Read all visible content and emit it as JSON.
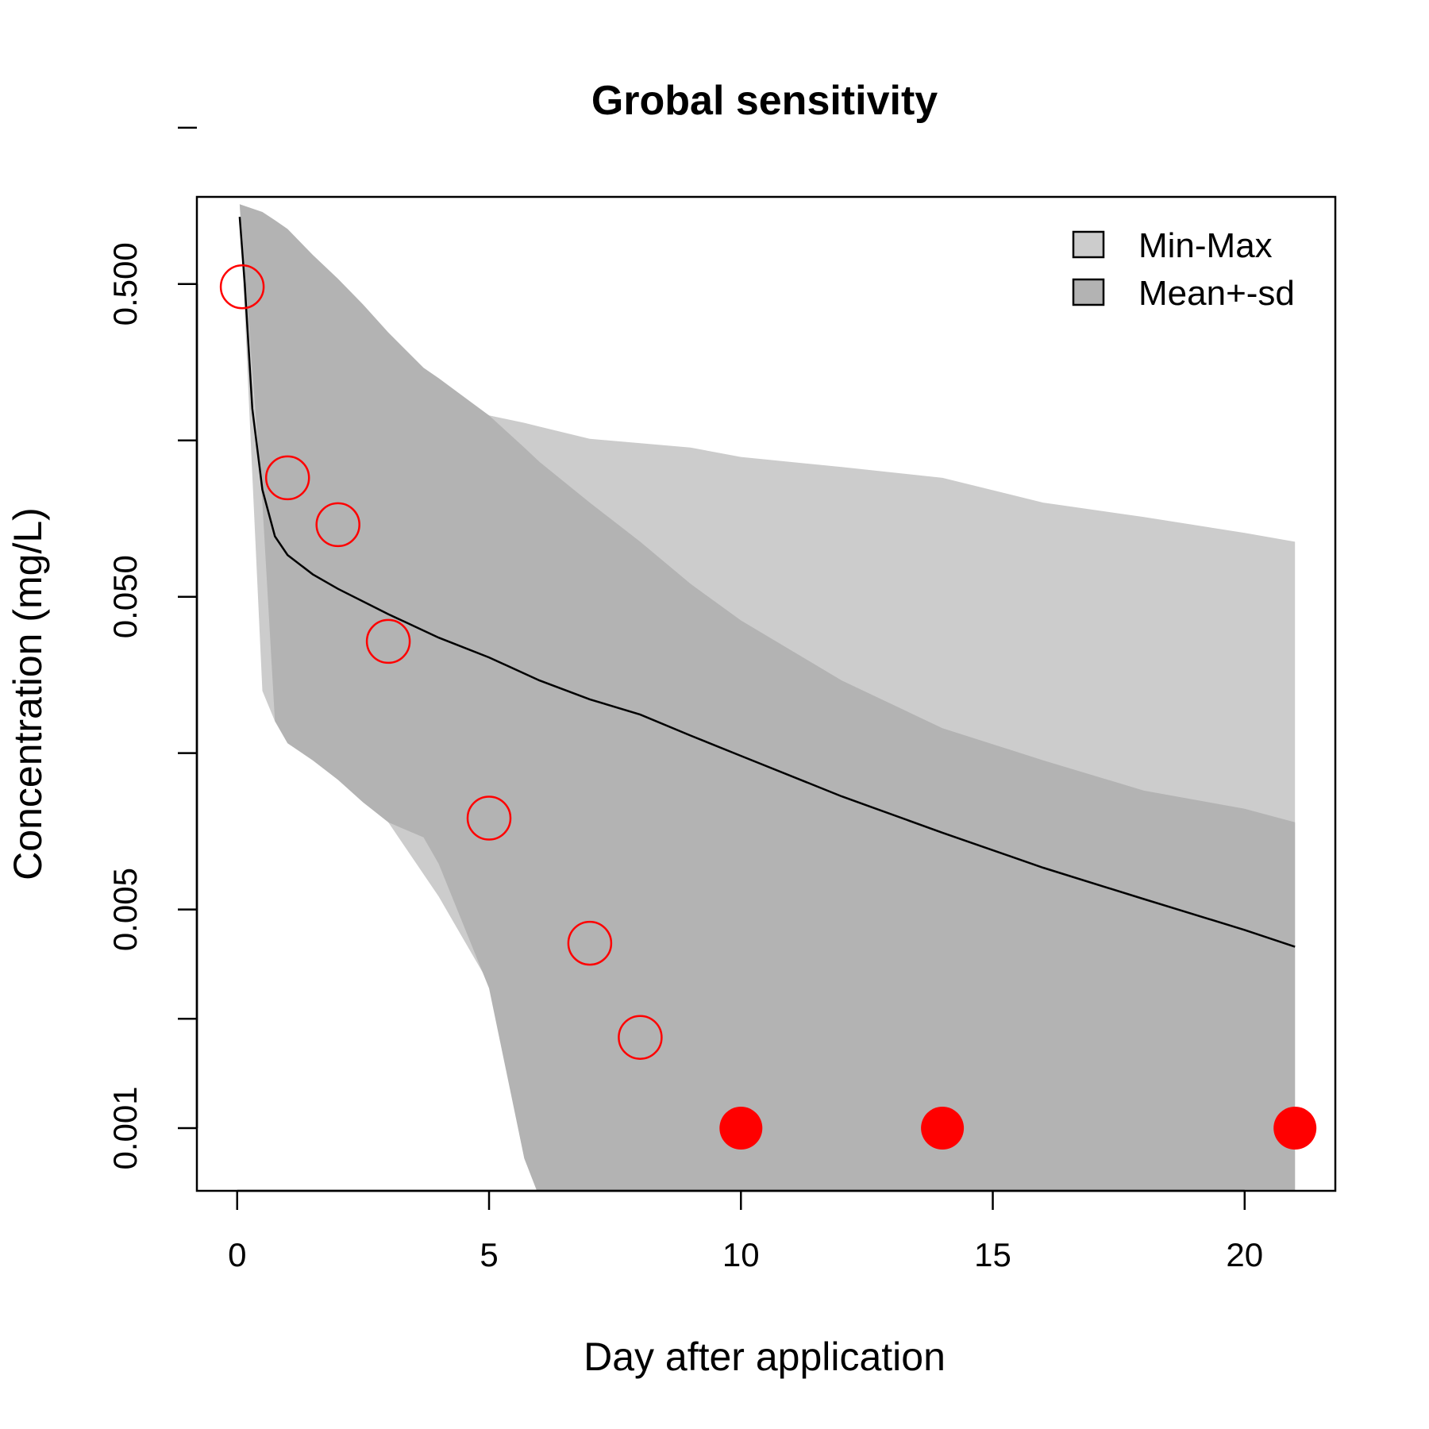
{
  "colors": {
    "minmax_band": "#cccccc",
    "sd_band": "#b3b3b3",
    "mean_line": "#000000",
    "observed": "#ff0000",
    "axes": "#000000"
  },
  "chart_data": {
    "type": "line",
    "title": "Grobal sensitivity",
    "xlabel": "Day after application",
    "ylabel": "Concentration (mg/L)",
    "xlim": [
      -0.8,
      21.8
    ],
    "ylim": [
      0.00063,
      0.95
    ],
    "y_scale": "log",
    "x_ticks": [
      0,
      5,
      10,
      15,
      20
    ],
    "x_tick_labels": [
      "0",
      "5",
      "10",
      "15",
      "20"
    ],
    "y_ticks": [
      0.001,
      0.005,
      0.05,
      0.5
    ],
    "y_tick_labels": [
      "0.001",
      "0.005",
      "0.050",
      "0.500"
    ],
    "grid": false,
    "legend": {
      "position": "top-right",
      "entries": [
        {
          "label": "Min-Max",
          "color": "#cccccc"
        },
        {
          "label": "Mean+-sd",
          "color": "#b3b3b3"
        }
      ]
    },
    "bands": [
      {
        "name": "Min-Max",
        "x": [
          0.05,
          0.5,
          0.75,
          1.0,
          1.5,
          2,
          2.5,
          3,
          4,
          5,
          5.7,
          6,
          7,
          8,
          9,
          10,
          12,
          14,
          16,
          18,
          20,
          21
        ],
        "lower": [
          0.9,
          0.025,
          0.02,
          0.019,
          0.016,
          0.013,
          0.012,
          0.0095,
          0.0055,
          0.0029,
          0.0008,
          0.0006,
          0.0006,
          0.0006,
          0.0006,
          0.0006,
          0.0006,
          0.0006,
          0.0006,
          0.0006,
          0.0006,
          0.0006
        ],
        "upper": [
          0.9,
          0.8,
          0.75,
          0.7,
          0.6,
          0.5,
          0.4,
          0.32,
          0.23,
          0.19,
          0.18,
          0.175,
          0.16,
          0.155,
          0.15,
          0.14,
          0.13,
          0.12,
          0.1,
          0.09,
          0.08,
          0.075
        ]
      },
      {
        "name": "Mean+-sd",
        "x": [
          0.05,
          0.5,
          0.75,
          1.0,
          1.5,
          2,
          2.5,
          3,
          3.7,
          4,
          5,
          5.7,
          6,
          7,
          8,
          9,
          10,
          12,
          14,
          16,
          18,
          20,
          21
        ],
        "lower": [
          0.9,
          0.1,
          0.02,
          0.017,
          0.015,
          0.013,
          0.011,
          0.0095,
          0.0085,
          0.007,
          0.0028,
          0.0008,
          0.0006,
          0.0006,
          0.0006,
          0.0006,
          0.0006,
          0.0006,
          0.0006,
          0.0006,
          0.0006,
          0.0006,
          0.0006
        ],
        "upper": [
          0.9,
          0.85,
          0.8,
          0.75,
          0.62,
          0.52,
          0.43,
          0.35,
          0.27,
          0.25,
          0.19,
          0.15,
          0.135,
          0.1,
          0.075,
          0.055,
          0.042,
          0.027,
          0.019,
          0.015,
          0.012,
          0.0105,
          0.0095
        ]
      }
    ],
    "series": [
      {
        "type": "line",
        "x": [
          0.05,
          0.15,
          0.3,
          0.5,
          0.75,
          1,
          1.5,
          2,
          3,
          4,
          5,
          6,
          7,
          8,
          9,
          10,
          12,
          14,
          16,
          18,
          20,
          21
        ],
        "values": [
          0.82,
          0.5,
          0.2,
          0.11,
          0.078,
          0.068,
          0.059,
          0.053,
          0.044,
          0.037,
          0.032,
          0.027,
          0.0235,
          0.021,
          0.018,
          0.0155,
          0.0115,
          0.0088,
          0.0068,
          0.0054,
          0.0043,
          0.0038
        ]
      },
      {
        "type": "scatter",
        "marker": "open-circle",
        "x": [
          0.1,
          1,
          2,
          3,
          5,
          7,
          8
        ],
        "values": [
          0.49,
          0.12,
          0.085,
          0.036,
          0.0098,
          0.0039,
          0.00195
        ]
      },
      {
        "type": "scatter",
        "marker": "filled-circle",
        "x": [
          10,
          14,
          21
        ],
        "values": [
          0.001,
          0.001,
          0.001
        ]
      }
    ]
  }
}
